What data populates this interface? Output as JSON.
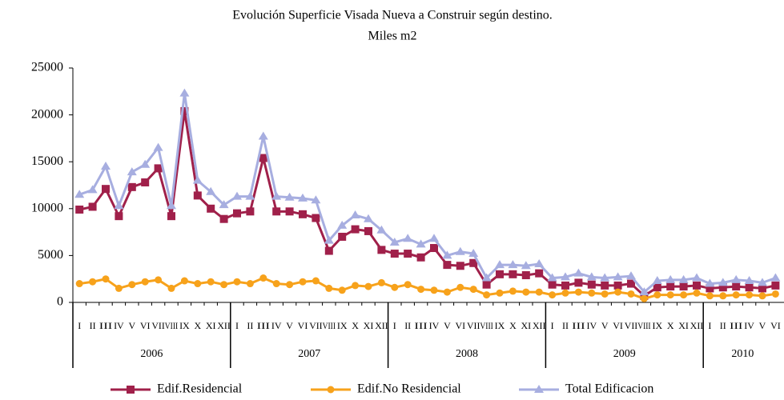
{
  "chart_data": {
    "type": "line",
    "title": "Evolución Superficie Visada Nueva a Construir según destino.",
    "subtitle": "Miles m2",
    "categories": [
      "I",
      "II",
      "III",
      "IV",
      "V",
      "VI",
      "VII",
      "VIII",
      "IX",
      "X",
      "XI",
      "XII",
      "I",
      "II",
      "III",
      "IV",
      "V",
      "VI",
      "VII",
      "VIII",
      "IX",
      "X",
      "XI",
      "XII",
      "I",
      "II",
      "III",
      "IV",
      "V",
      "VI",
      "VII",
      "VIII",
      "IX",
      "X",
      "XI",
      "XII",
      "I",
      "II",
      "III",
      "IV",
      "V",
      "VI",
      "VII",
      "VIII",
      "IX",
      "X",
      "XI",
      "XII",
      "I",
      "II",
      "III",
      "IV",
      "V",
      "VI"
    ],
    "year_groups": [
      "2006",
      "2007",
      "2008",
      "2009",
      "2010"
    ],
    "series": [
      {
        "name": "Edif.Residencial",
        "color": "#a0204a",
        "marker": "square",
        "values": [
          9900,
          10200,
          12100,
          9200,
          12300,
          12800,
          14300,
          9200,
          20400,
          11400,
          10000,
          8900,
          9500,
          9700,
          15400,
          9700,
          9700,
          9400,
          9000,
          5500,
          7000,
          7800,
          7600,
          5600,
          5200,
          5200,
          4800,
          5800,
          4000,
          3900,
          4200,
          1900,
          3000,
          3000,
          2900,
          3100,
          1900,
          1800,
          2100,
          1900,
          1800,
          1800,
          2000,
          700,
          1600,
          1700,
          1700,
          1800,
          1500,
          1600,
          1700,
          1600,
          1500,
          1800
        ]
      },
      {
        "name": "Edif.No Residencial",
        "color": "#f7a21b",
        "marker": "circle",
        "values": [
          2000,
          2200,
          2500,
          1500,
          1900,
          2200,
          2400,
          1500,
          2300,
          2000,
          2200,
          1900,
          2200,
          2000,
          2600,
          2000,
          1900,
          2200,
          2300,
          1500,
          1300,
          1800,
          1700,
          2100,
          1600,
          1900,
          1400,
          1300,
          1100,
          1600,
          1400,
          800,
          1000,
          1200,
          1100,
          1100,
          800,
          1000,
          1100,
          1000,
          900,
          1100,
          900,
          400,
          800,
          800,
          800,
          1000,
          700,
          700,
          800,
          800,
          700,
          900
        ]
      },
      {
        "name": "Total Edificacion",
        "color": "#a7aee0",
        "marker": "triangle",
        "values": [
          11500,
          12000,
          14500,
          10300,
          13900,
          14700,
          16500,
          10300,
          22300,
          13000,
          11800,
          10400,
          11300,
          11300,
          17700,
          11300,
          11200,
          11100,
          10900,
          6600,
          8200,
          9300,
          8900,
          7700,
          6400,
          6800,
          6200,
          6800,
          5000,
          5400,
          5200,
          2600,
          4000,
          4000,
          3900,
          4100,
          2600,
          2700,
          3100,
          2700,
          2600,
          2700,
          2800,
          1100,
          2300,
          2400,
          2400,
          2600,
          2000,
          2100,
          2400,
          2300,
          2100,
          2600
        ]
      }
    ],
    "ylim": [
      0,
      25000
    ],
    "yticks": [
      0,
      5000,
      10000,
      15000,
      20000,
      25000
    ],
    "legend": "bottom"
  }
}
